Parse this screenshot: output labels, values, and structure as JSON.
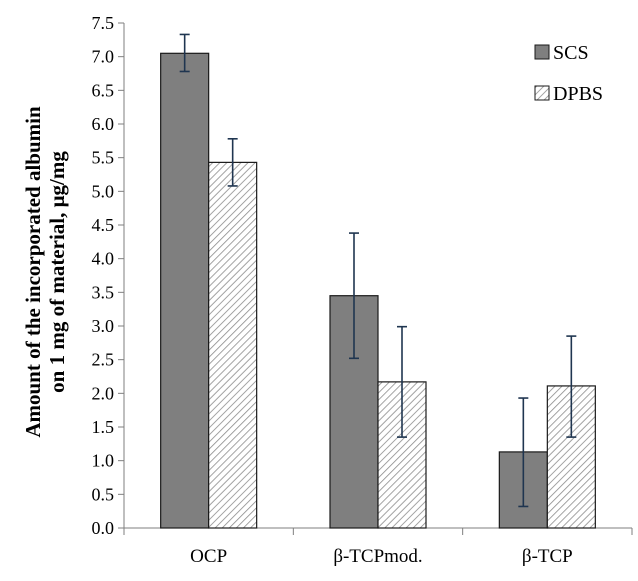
{
  "chart_data": {
    "type": "bar",
    "title": "",
    "xlabel": "",
    "ylabel_lines": [
      "Amount of the incorporated  albumin",
      "on 1 mg of material, μg/mg"
    ],
    "categories": [
      "OCP",
      "β-TCPmod.",
      "β-TCP"
    ],
    "ylim": [
      0,
      7.5
    ],
    "yticks": [
      "0.0",
      "0.5",
      "1.0",
      "1.5",
      "2.0",
      "2.5",
      "3.0",
      "3.5",
      "4.0",
      "4.5",
      "5.0",
      "5.5",
      "6.0",
      "6.5",
      "7.0",
      "7.5"
    ],
    "grid": false,
    "legend_position": "top-right",
    "series": [
      {
        "name": "SCS",
        "fill": "solid",
        "color": "#7f7f7f",
        "values": [
          7.05,
          3.45,
          1.13
        ],
        "err_low": [
          6.78,
          2.52,
          0.32
        ],
        "err_high": [
          7.33,
          4.38,
          1.93
        ]
      },
      {
        "name": "DPBS",
        "fill": "hatched",
        "color": "#ffffff",
        "values": [
          5.43,
          2.17,
          2.11
        ],
        "err_low": [
          5.08,
          1.35,
          1.35
        ],
        "err_high": [
          5.78,
          2.99,
          2.85
        ]
      }
    ]
  }
}
